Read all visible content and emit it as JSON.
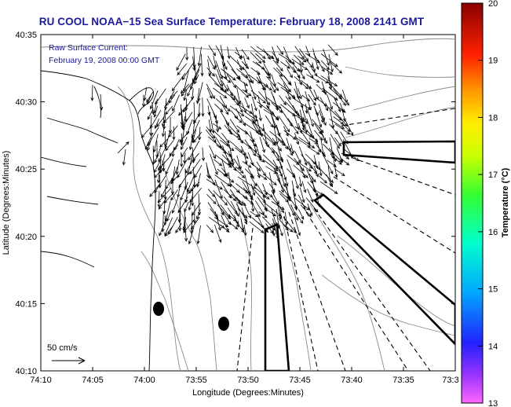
{
  "title": "RU COOL  NOAA−15  Sea Surface Temperature:  February 18, 2008 2141 GMT",
  "map": {
    "current_label": "Raw Surface Current:",
    "current_time": "February 19, 2008 00:00 GMT",
    "scale_label": "50 cm/s",
    "xlabel": "Longitude (Degrees:Minutes)",
    "ylabel": "Latitude (Degrees:Minutes)",
    "xticks": [
      "74:10",
      "74:05",
      "74:00",
      "73:55",
      "73:50",
      "73:45",
      "73:40",
      "73:35",
      "73:3"
    ],
    "yticks": [
      "40:35",
      "40:30",
      "40:25",
      "40:20",
      "40:15",
      "40:10"
    ],
    "xlim_deg": [
      -74.1667,
      -73.5
    ],
    "ylim_deg": [
      40.1667,
      40.5833
    ]
  },
  "colorbar": {
    "label": "Temperature (°C)",
    "ticks": [
      "20",
      "19",
      "18",
      "17",
      "16",
      "15",
      "14",
      "13"
    ],
    "min": 13,
    "max": 20
  },
  "colors": {
    "title": "#1a1a9a",
    "land": "#000000",
    "contour": "#888888"
  }
}
